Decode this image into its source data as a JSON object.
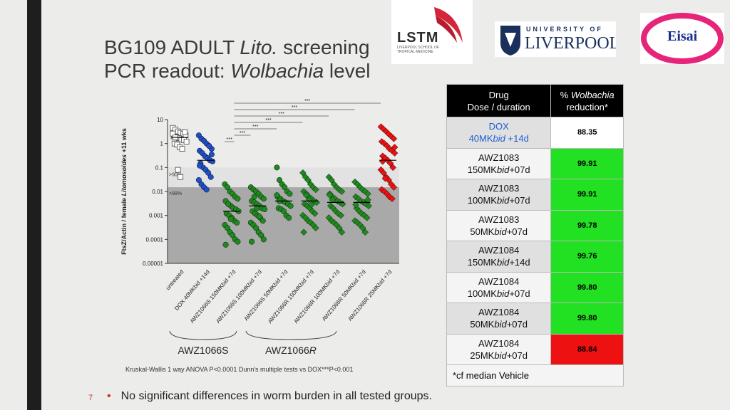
{
  "slide": {
    "title_line1_pre": "BG109 ADULT ",
    "title_line1_italic": "Lito.",
    "title_line1_post": " screening",
    "title_line2_pre": "PCR readout: ",
    "title_line2_italic": "Wolbachia",
    "title_line2_post": " level",
    "page_number": "7",
    "bullet": "No significant differences in worm burden in all tested groups.",
    "stats_note": "Kruskal-Wallis 1 way ANOVA P<0.0001  Dunn's multiple tests vs DOX***P<0.001"
  },
  "logos": {
    "lstm": "LSTM",
    "lstm_sub": "LIVERPOOL SCHOOL OF TROPICAL MEDICINE",
    "uol_top": "UNIVERSITY OF",
    "uol_big": "LIVERPOOL",
    "eisai": "Eisai"
  },
  "table": {
    "header_drug_line1": "Drug",
    "header_drug_line2": "Dose / duration",
    "header_red_pre": "% ",
    "header_red_italic": "Wolbachia",
    "header_red_line2": "reduction*",
    "rows": [
      {
        "drug": "DOX",
        "dose_pre": "40MK",
        "dose_italic": "bid",
        "dose_post": " +14d",
        "value": "88.35",
        "color": "#ffffff"
      },
      {
        "drug": "AWZ1083",
        "dose_pre": "150MK",
        "dose_italic": "bid",
        "dose_post": "+07d",
        "value": "99.91",
        "color": "#22e022"
      },
      {
        "drug": "AWZ1083",
        "dose_pre": "100MK",
        "dose_italic": "bid",
        "dose_post": "+07d",
        "value": "99.91",
        "color": "#22e022"
      },
      {
        "drug": "AWZ1083",
        "dose_pre": "50MK",
        "dose_italic": "bid",
        "dose_post": "+07d",
        "value": "99.78",
        "color": "#22e022"
      },
      {
        "drug": "AWZ1084",
        "dose_pre": "150MK",
        "dose_italic": "bid",
        "dose_post": "+14d",
        "value": "99.76",
        "color": "#22e022"
      },
      {
        "drug": "AWZ1084",
        "dose_pre": "100MK",
        "dose_italic": "bid",
        "dose_post": "+07d",
        "value": "99.80",
        "color": "#22e022"
      },
      {
        "drug": "AWZ1084",
        "dose_pre": "50MK",
        "dose_italic": "bid",
        "dose_post": "+07d",
        "value": "99.80",
        "color": "#22e022"
      },
      {
        "drug": "AWZ1084",
        "dose_pre": "25MK",
        "dose_italic": "bid",
        "dose_post": "+07d",
        "value": "88.84",
        "color": "#ee1111"
      }
    ],
    "footnote": "*cf median Vehicle"
  },
  "chart_data": {
    "type": "scatter",
    "ylabel_pre": "FtsZ/Actin / female ",
    "ylabel_italic": "Litomosoides",
    "ylabel_post": " +11 wks",
    "yscale": "log",
    "ylim": [
      1e-05,
      10
    ],
    "yticks": [
      "0.00001",
      "0.0001",
      "0.001",
      "0.01",
      "0.1",
      "1",
      "10"
    ],
    "threshold_labels": [
      ">90%",
      ">99%"
    ],
    "significance_label": "***",
    "groups_label_s": "AWZ1066S",
    "groups_label_r": "AWZ1066R",
    "categories": [
      "untreated",
      "DOX 40MKbid +14d",
      "AWZ1066S 150MKbid +7d",
      "AWZ1066S 100MKbid +7d",
      "AWZ1066S 50MKbid +7d",
      "AWZ1066R 150MKbid +7d",
      "AWZ1066R 100MKbid +7d",
      "AWZ1066R 50MKbid +7d",
      "AWZ1066R 25MKbid +7d"
    ],
    "medians": [
      1.8,
      0.2,
      0.0015,
      0.0025,
      0.004,
      0.004,
      0.0035,
      0.0035,
      0.2
    ],
    "series": [
      {
        "values": [
          4.5,
          3.8,
          3.2,
          2.8,
          2.5,
          2.2,
          2.0,
          1.9,
          1.7,
          1.5,
          1.4,
          1.2,
          1.0,
          0.9,
          0.7,
          0.6,
          3.0,
          2.6,
          1.8,
          0.08,
          0.04
        ]
      },
      {
        "values": [
          2.2,
          1.6,
          1.3,
          1.0,
          0.8,
          0.6,
          0.5,
          0.4,
          0.3,
          0.25,
          0.2,
          0.18,
          0.15,
          0.1,
          0.08,
          0.06,
          0.04,
          0.03,
          0.02,
          0.015,
          0.012,
          0.8,
          0.35,
          0.12
        ]
      },
      {
        "values": [
          0.02,
          0.015,
          0.01,
          0.008,
          0.006,
          0.005,
          0.004,
          0.003,
          0.0025,
          0.002,
          0.0018,
          0.0015,
          0.0012,
          0.001,
          0.0008,
          0.0006,
          0.0005,
          0.0004,
          0.0003,
          0.0002,
          0.00015,
          0.0001,
          8e-05,
          6e-05,
          0.003,
          0.0007
        ]
      },
      {
        "values": [
          0.015,
          0.012,
          0.01,
          0.008,
          0.006,
          0.005,
          0.004,
          0.0035,
          0.003,
          0.0025,
          0.002,
          0.0018,
          0.0015,
          0.0012,
          0.001,
          0.0008,
          0.0006,
          0.0005,
          0.0004,
          0.0003,
          0.0002,
          0.00015,
          0.0001,
          8e-05,
          0.006,
          0.002,
          0.0009
        ]
      },
      {
        "values": [
          0.1,
          0.03,
          0.02,
          0.015,
          0.01,
          0.008,
          0.006,
          0.005,
          0.004,
          0.0035,
          0.003,
          0.0025,
          0.002,
          0.0018,
          0.0015,
          0.001,
          0.0008,
          0.007,
          0.004
        ]
      },
      {
        "values": [
          0.06,
          0.04,
          0.03,
          0.02,
          0.015,
          0.012,
          0.01,
          0.008,
          0.006,
          0.005,
          0.004,
          0.0035,
          0.003,
          0.0025,
          0.002,
          0.0015,
          0.0012,
          0.001,
          0.0008,
          0.0006,
          0.0005,
          0.0004,
          0.0003,
          0.0002,
          0.007,
          0.0045,
          0.0028
        ]
      },
      {
        "values": [
          0.04,
          0.03,
          0.02,
          0.015,
          0.012,
          0.01,
          0.008,
          0.006,
          0.005,
          0.004,
          0.0035,
          0.003,
          0.0025,
          0.002,
          0.0015,
          0.0012,
          0.001,
          0.0008,
          0.0006,
          0.0005,
          0.0004,
          0.0003,
          0.0002,
          0.007,
          0.0045
        ]
      },
      {
        "values": [
          0.025,
          0.02,
          0.015,
          0.012,
          0.01,
          0.008,
          0.006,
          0.005,
          0.004,
          0.0035,
          0.003,
          0.0025,
          0.002,
          0.0015,
          0.0012,
          0.001,
          0.0008,
          0.0006,
          0.0005,
          0.0004,
          0.0003,
          0.0002,
          0.0045,
          0.0028
        ]
      },
      {
        "values": [
          5,
          4,
          3.2,
          2.5,
          2.0,
          1.6,
          1.2,
          1.0,
          0.8,
          0.6,
          0.5,
          0.4,
          0.3,
          0.25,
          0.2,
          0.15,
          0.1,
          0.08,
          0.06,
          0.04,
          0.03,
          0.02,
          0.015,
          0.012,
          0.01,
          0.008,
          0.006,
          0.005,
          0.7,
          0.18,
          0.035
        ]
      }
    ],
    "colors": [
      "#ffffff",
      "#1f4fc8",
      "#1e8a1e",
      "#1e8a1e",
      "#1e8a1e",
      "#1e8a1e",
      "#1e8a1e",
      "#1e8a1e",
      "#ee1111"
    ],
    "markers": [
      "square",
      "circle",
      "circle",
      "circle",
      "circle",
      "diamond",
      "diamond",
      "diamond",
      "diamond"
    ],
    "significance_bars": [
      [
        1,
        8
      ],
      [
        1,
        7
      ],
      [
        1,
        6
      ],
      [
        1,
        5
      ],
      [
        1,
        4
      ],
      [
        1,
        3
      ],
      [
        1,
        2
      ]
    ]
  }
}
